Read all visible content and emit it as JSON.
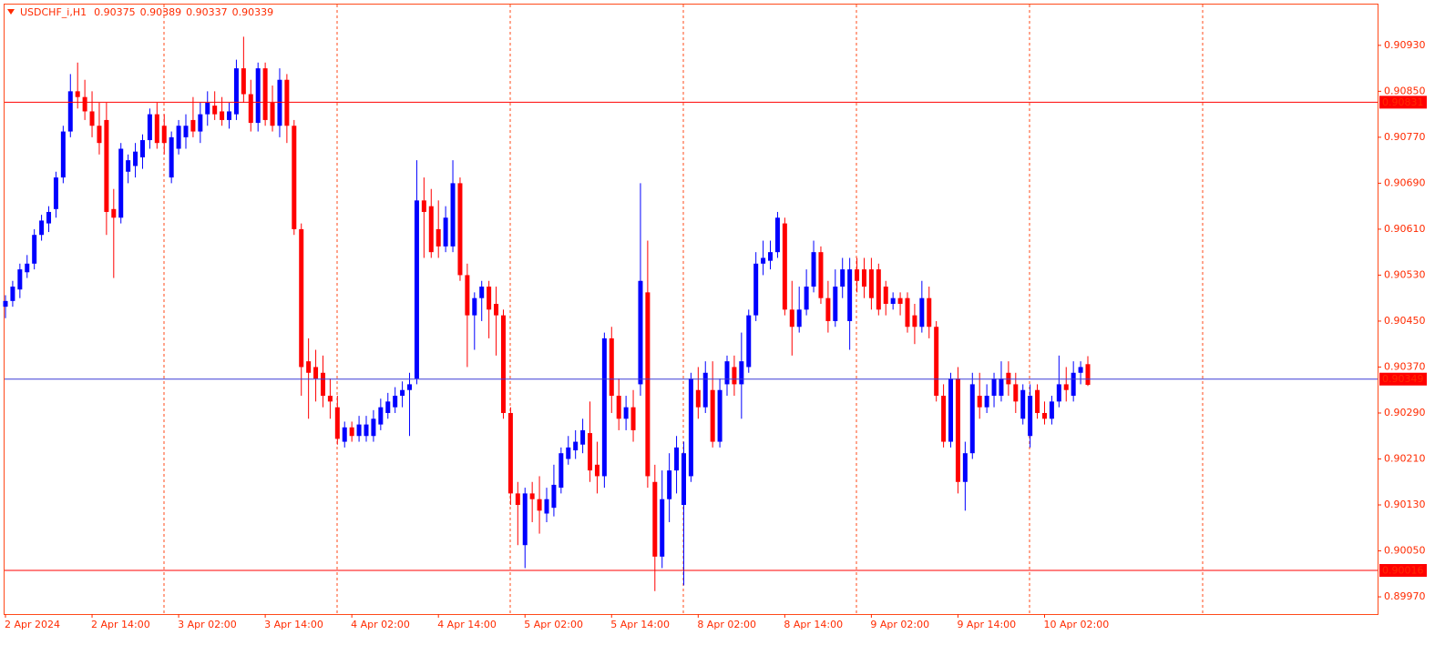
{
  "chart_data": {
    "type": "candlestick",
    "symbol": "USDCHF_i,H1",
    "up_color": "#0000ff",
    "down_color": "#ff0000",
    "axis_color": "#ff2a00",
    "ylim": [
      0.8994,
      0.91001
    ],
    "yticks": [
      {
        "value": 0.9093,
        "label": "0.90930"
      },
      {
        "value": 0.9085,
        "label": "0.90850"
      },
      {
        "value": 0.9077,
        "label": "0.90770"
      },
      {
        "value": 0.9069,
        "label": "0.90690"
      },
      {
        "value": 0.9061,
        "label": "0.90610"
      },
      {
        "value": 0.9053,
        "label": "0.90530"
      },
      {
        "value": 0.9045,
        "label": "0.90450"
      },
      {
        "value": 0.9037,
        "label": "0.90370"
      },
      {
        "value": 0.9029,
        "label": "0.90290"
      },
      {
        "value": 0.9021,
        "label": "0.90210"
      },
      {
        "value": 0.9013,
        "label": "0.90130"
      },
      {
        "value": 0.9005,
        "label": "0.90050"
      },
      {
        "value": 0.8997,
        "label": "0.89970"
      }
    ],
    "price_lines": [
      {
        "value": 0.90831,
        "color": "#ff0000"
      },
      {
        "value": 0.90016,
        "color": "#ff0000"
      },
      {
        "value": 0.90349,
        "color": "#3b3bd6"
      }
    ],
    "categories": [
      "2 Apr 2024",
      null,
      null,
      null,
      null,
      null,
      null,
      null,
      null,
      null,
      null,
      null,
      "2 Apr 14:00",
      null,
      null,
      null,
      null,
      null,
      null,
      null,
      null,
      null,
      null,
      null,
      "3 Apr 02:00",
      null,
      null,
      null,
      null,
      null,
      null,
      null,
      null,
      null,
      null,
      null,
      "3 Apr 14:00",
      null,
      null,
      null,
      null,
      null,
      null,
      null,
      null,
      null,
      null,
      null,
      "4 Apr 02:00",
      null,
      null,
      null,
      null,
      null,
      null,
      null,
      null,
      null,
      null,
      null,
      "4 Apr 14:00",
      null,
      null,
      null,
      null,
      null,
      null,
      null,
      null,
      null,
      null,
      null,
      "5 Apr 02:00",
      null,
      null,
      null,
      null,
      null,
      null,
      null,
      null,
      null,
      null,
      null,
      "5 Apr 14:00",
      null,
      null,
      null,
      null,
      null,
      null,
      null,
      null,
      null,
      null,
      null,
      "8 Apr 02:00",
      null,
      null,
      null,
      null,
      null,
      null,
      null,
      null,
      null,
      null,
      null,
      "8 Apr 14:00",
      null,
      null,
      null,
      null,
      null,
      null,
      null,
      null,
      null,
      null,
      null,
      "9 Apr 02:00",
      null,
      null,
      null,
      null,
      null,
      null,
      null,
      null,
      null,
      null,
      null,
      "9 Apr 14:00",
      null,
      null,
      null,
      null,
      null,
      null,
      null,
      null,
      null,
      null,
      null,
      "10 Apr 02:00",
      null,
      null,
      null,
      null,
      null,
      null
    ],
    "candles": [
      [
        0.90475,
        0.90495,
        0.90455,
        0.90485
      ],
      [
        0.90485,
        0.9052,
        0.90475,
        0.9051
      ],
      [
        0.90505,
        0.9055,
        0.9049,
        0.9054
      ],
      [
        0.90535,
        0.90565,
        0.90525,
        0.9055
      ],
      [
        0.9055,
        0.9061,
        0.9054,
        0.906
      ],
      [
        0.906,
        0.90635,
        0.9059,
        0.90625
      ],
      [
        0.9062,
        0.9065,
        0.90605,
        0.9064
      ],
      [
        0.90645,
        0.9071,
        0.9063,
        0.907
      ],
      [
        0.907,
        0.9079,
        0.9069,
        0.9078
      ],
      [
        0.9078,
        0.9088,
        0.9077,
        0.9085
      ],
      [
        0.9085,
        0.909,
        0.9082,
        0.9084
      ],
      [
        0.9084,
        0.9087,
        0.908,
        0.90815
      ],
      [
        0.90815,
        0.9085,
        0.9077,
        0.9079
      ],
      [
        0.9079,
        0.9083,
        0.9074,
        0.9076
      ],
      [
        0.908,
        0.9083,
        0.906,
        0.9064
      ],
      [
        0.90645,
        0.9068,
        0.90525,
        0.9063
      ],
      [
        0.9063,
        0.9076,
        0.9062,
        0.9075
      ],
      [
        0.9071,
        0.9074,
        0.9069,
        0.9073
      ],
      [
        0.9072,
        0.9076,
        0.907,
        0.90745
      ],
      [
        0.90735,
        0.90775,
        0.90715,
        0.90765
      ],
      [
        0.90765,
        0.9082,
        0.9075,
        0.9081
      ],
      [
        0.9081,
        0.9083,
        0.9075,
        0.9076
      ],
      [
        0.9079,
        0.9081,
        0.9074,
        0.9076
      ],
      [
        0.907,
        0.9078,
        0.9069,
        0.9077
      ],
      [
        0.9075,
        0.908,
        0.9074,
        0.9079
      ],
      [
        0.9077,
        0.9081,
        0.9075,
        0.9079
      ],
      [
        0.908,
        0.9084,
        0.9077,
        0.9078
      ],
      [
        0.9078,
        0.9083,
        0.9076,
        0.9081
      ],
      [
        0.9081,
        0.9085,
        0.9079,
        0.9083
      ],
      [
        0.90825,
        0.9085,
        0.908,
        0.9081
      ],
      [
        0.90815,
        0.9084,
        0.9079,
        0.908
      ],
      [
        0.908,
        0.9083,
        0.90785,
        0.90815
      ],
      [
        0.9081,
        0.90905,
        0.908,
        0.9089
      ],
      [
        0.9089,
        0.90945,
        0.9083,
        0.90845
      ],
      [
        0.90845,
        0.9087,
        0.9078,
        0.90795
      ],
      [
        0.90795,
        0.909,
        0.9078,
        0.9089
      ],
      [
        0.9089,
        0.909,
        0.9079,
        0.908
      ],
      [
        0.9083,
        0.9086,
        0.9078,
        0.9079
      ],
      [
        0.9079,
        0.9089,
        0.9077,
        0.9087
      ],
      [
        0.9087,
        0.9088,
        0.9076,
        0.9079
      ],
      [
        0.9079,
        0.908,
        0.906,
        0.9061
      ],
      [
        0.9061,
        0.9062,
        0.9032,
        0.9037
      ],
      [
        0.9038,
        0.9042,
        0.9028,
        0.9036
      ],
      [
        0.9037,
        0.904,
        0.9031,
        0.9035
      ],
      [
        0.9036,
        0.9039,
        0.903,
        0.9032
      ],
      [
        0.9032,
        0.9035,
        0.9028,
        0.9031
      ],
      [
        0.903,
        0.9032,
        0.90235,
        0.90245
      ],
      [
        0.9024,
        0.90275,
        0.9023,
        0.90265
      ],
      [
        0.90265,
        0.90275,
        0.9024,
        0.9025
      ],
      [
        0.9025,
        0.90285,
        0.9024,
        0.9027
      ],
      [
        0.9025,
        0.90285,
        0.9024,
        0.9027
      ],
      [
        0.9025,
        0.90295,
        0.9024,
        0.9028
      ],
      [
        0.9027,
        0.90315,
        0.9026,
        0.903
      ],
      [
        0.9029,
        0.90325,
        0.9028,
        0.9031
      ],
      [
        0.903,
        0.90335,
        0.9029,
        0.9032
      ],
      [
        0.9032,
        0.90345,
        0.903,
        0.9033
      ],
      [
        0.9033,
        0.9036,
        0.9025,
        0.9034
      ],
      [
        0.9035,
        0.9073,
        0.9034,
        0.9066
      ],
      [
        0.9066,
        0.907,
        0.9056,
        0.9064
      ],
      [
        0.9065,
        0.9068,
        0.9056,
        0.9057
      ],
      [
        0.9061,
        0.9066,
        0.9056,
        0.9058
      ],
      [
        0.9058,
        0.9065,
        0.9057,
        0.9063
      ],
      [
        0.9058,
        0.9073,
        0.9057,
        0.9069
      ],
      [
        0.9069,
        0.907,
        0.9052,
        0.9053
      ],
      [
        0.9053,
        0.9055,
        0.9037,
        0.9046
      ],
      [
        0.9046,
        0.905,
        0.904,
        0.9049
      ],
      [
        0.9049,
        0.9052,
        0.9045,
        0.9051
      ],
      [
        0.9051,
        0.9052,
        0.9042,
        0.9047
      ],
      [
        0.9048,
        0.9051,
        0.9039,
        0.9046
      ],
      [
        0.9046,
        0.9047,
        0.9028,
        0.9029
      ],
      [
        0.9029,
        0.903,
        0.9013,
        0.9015
      ],
      [
        0.9015,
        0.9017,
        0.9006,
        0.9013
      ],
      [
        0.9006,
        0.9016,
        0.9002,
        0.9015
      ],
      [
        0.9015,
        0.9017,
        0.901,
        0.9014
      ],
      [
        0.9014,
        0.9018,
        0.9008,
        0.9012
      ],
      [
        0.90115,
        0.9016,
        0.901,
        0.9014
      ],
      [
        0.90125,
        0.902,
        0.9011,
        0.90165
      ],
      [
        0.9016,
        0.9023,
        0.9015,
        0.9022
      ],
      [
        0.9021,
        0.9025,
        0.902,
        0.9023
      ],
      [
        0.90225,
        0.9026,
        0.9021,
        0.9024
      ],
      [
        0.90235,
        0.9028,
        0.9022,
        0.9026
      ],
      [
        0.90255,
        0.9031,
        0.9017,
        0.9019
      ],
      [
        0.902,
        0.9024,
        0.9015,
        0.9018
      ],
      [
        0.9018,
        0.9043,
        0.9016,
        0.9042
      ],
      [
        0.9042,
        0.9044,
        0.9029,
        0.9032
      ],
      [
        0.9032,
        0.9035,
        0.9026,
        0.9028
      ],
      [
        0.9028,
        0.9032,
        0.9026,
        0.903
      ],
      [
        0.903,
        0.9033,
        0.9024,
        0.9026
      ],
      [
        0.9034,
        0.9069,
        0.9032,
        0.9052
      ],
      [
        0.905,
        0.9059,
        0.9016,
        0.9018
      ],
      [
        0.9017,
        0.902,
        0.8998,
        0.9004
      ],
      [
        0.9004,
        0.9019,
        0.9002,
        0.9014
      ],
      [
        0.9014,
        0.9022,
        0.901,
        0.9019
      ],
      [
        0.9019,
        0.9025,
        0.9015,
        0.9023
      ],
      [
        0.9013,
        0.9024,
        0.8999,
        0.9022
      ],
      [
        0.9018,
        0.9036,
        0.9017,
        0.9035
      ],
      [
        0.9033,
        0.9037,
        0.9028,
        0.903
      ],
      [
        0.903,
        0.9038,
        0.9029,
        0.9036
      ],
      [
        0.9033,
        0.9038,
        0.9023,
        0.9024
      ],
      [
        0.9024,
        0.9035,
        0.9023,
        0.9033
      ],
      [
        0.9034,
        0.9039,
        0.9032,
        0.9038
      ],
      [
        0.9037,
        0.9039,
        0.9032,
        0.9034
      ],
      [
        0.9034,
        0.9043,
        0.9028,
        0.9038
      ],
      [
        0.9037,
        0.9047,
        0.9036,
        0.9046
      ],
      [
        0.9046,
        0.9057,
        0.9045,
        0.9055
      ],
      [
        0.9055,
        0.9059,
        0.9053,
        0.9056
      ],
      [
        0.90555,
        0.9059,
        0.9054,
        0.9057
      ],
      [
        0.9057,
        0.9064,
        0.9056,
        0.9063
      ],
      [
        0.9062,
        0.9063,
        0.9046,
        0.9047
      ],
      [
        0.9047,
        0.9052,
        0.9039,
        0.9044
      ],
      [
        0.9044,
        0.9051,
        0.9043,
        0.9047
      ],
      [
        0.9047,
        0.9054,
        0.9046,
        0.9051
      ],
      [
        0.9051,
        0.9059,
        0.905,
        0.9057
      ],
      [
        0.9057,
        0.9058,
        0.9048,
        0.9049
      ],
      [
        0.9049,
        0.9052,
        0.9043,
        0.9045
      ],
      [
        0.9045,
        0.9054,
        0.9044,
        0.9051
      ],
      [
        0.9051,
        0.9056,
        0.9049,
        0.9054
      ],
      [
        0.9045,
        0.9056,
        0.904,
        0.9054
      ],
      [
        0.9054,
        0.9056,
        0.905,
        0.9052
      ],
      [
        0.9054,
        0.9056,
        0.9049,
        0.9051
      ],
      [
        0.9054,
        0.9056,
        0.9047,
        0.9049
      ],
      [
        0.9054,
        0.9055,
        0.9046,
        0.9047
      ],
      [
        0.9051,
        0.9052,
        0.9046,
        0.9048
      ],
      [
        0.9048,
        0.905,
        0.9047,
        0.9049
      ],
      [
        0.9049,
        0.905,
        0.9046,
        0.9048
      ],
      [
        0.9049,
        0.905,
        0.9043,
        0.9044
      ],
      [
        0.9046,
        0.9048,
        0.9041,
        0.9044
      ],
      [
        0.9044,
        0.9052,
        0.9043,
        0.9049
      ],
      [
        0.9049,
        0.9051,
        0.9042,
        0.9044
      ],
      [
        0.9044,
        0.9045,
        0.9031,
        0.9032
      ],
      [
        0.9032,
        0.9034,
        0.9023,
        0.9024
      ],
      [
        0.9024,
        0.9036,
        0.9023,
        0.9035
      ],
      [
        0.9035,
        0.9037,
        0.9015,
        0.9017
      ],
      [
        0.9017,
        0.9024,
        0.9012,
        0.9022
      ],
      [
        0.9022,
        0.9036,
        0.9021,
        0.9034
      ],
      [
        0.9032,
        0.9036,
        0.9028,
        0.903
      ],
      [
        0.903,
        0.9034,
        0.9029,
        0.9032
      ],
      [
        0.9032,
        0.9036,
        0.903,
        0.9035
      ],
      [
        0.9032,
        0.9038,
        0.9031,
        0.9035
      ],
      [
        0.9036,
        0.9038,
        0.9032,
        0.9034
      ],
      [
        0.9034,
        0.9036,
        0.9029,
        0.9031
      ],
      [
        0.9028,
        0.9034,
        0.9027,
        0.9033
      ],
      [
        0.9025,
        0.9034,
        0.9023,
        0.9032
      ],
      [
        0.9033,
        0.9034,
        0.9028,
        0.9029
      ],
      [
        0.9029,
        0.9031,
        0.9027,
        0.9028
      ],
      [
        0.9028,
        0.9032,
        0.9027,
        0.9031
      ],
      [
        0.9031,
        0.9039,
        0.903,
        0.9034
      ],
      [
        0.9034,
        0.9037,
        0.9031,
        0.9033
      ],
      [
        0.9032,
        0.9038,
        0.9031,
        0.9036
      ],
      [
        0.9036,
        0.9038,
        0.9034,
        0.9037
      ],
      [
        0.90375,
        0.90389,
        0.90337,
        0.90339
      ]
    ]
  }
}
